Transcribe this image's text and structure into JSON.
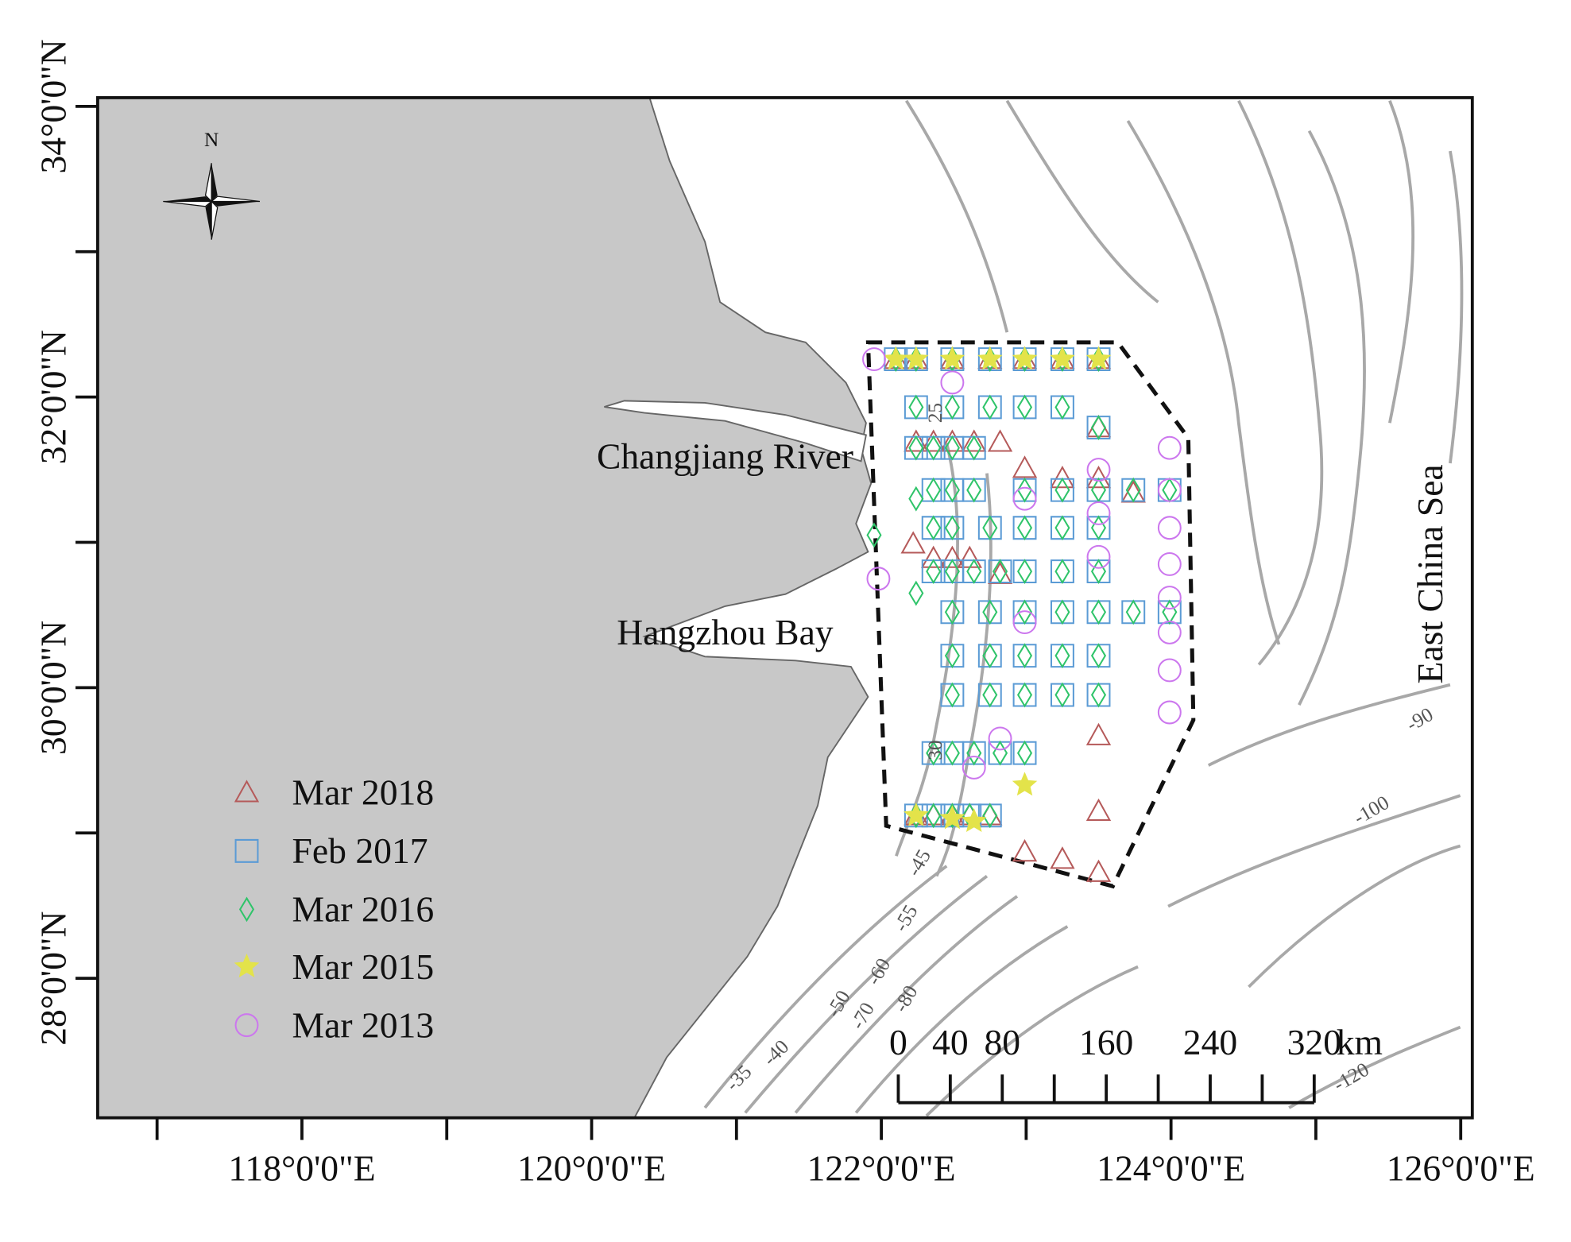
{
  "map": {
    "compass_label": "N",
    "xlim": [
      116.59,
      126.08
    ],
    "ylim": [
      27.04,
      34.06
    ],
    "xticks": [
      {
        "value": 118,
        "label": "118°0'0\"E"
      },
      {
        "value": 120,
        "label": "120°0'0\"E"
      },
      {
        "value": 122,
        "label": "122°0'0\"E"
      },
      {
        "value": 124,
        "label": "124°0'0\"E"
      },
      {
        "value": 126,
        "label": "126°0'0\"E"
      }
    ],
    "xminor": [
      117,
      119,
      121,
      123,
      125
    ],
    "yticks": [
      {
        "value": 28,
        "label": "28°0'0\"N"
      },
      {
        "value": 30,
        "label": "30°0'0\"N"
      },
      {
        "value": 32,
        "label": "32°0'0\"N"
      },
      {
        "value": 34,
        "label": "34°0'0\"N"
      }
    ],
    "yminor": [
      29,
      31,
      33
    ],
    "places": [
      "Changjiang River",
      "Hangzhou Bay",
      "East China Sea"
    ],
    "contour_labels": [
      25,
      30,
      -45,
      -55,
      -60,
      -50,
      -70,
      -80,
      -35,
      -40,
      -90,
      -100,
      -120
    ],
    "scale_bar": {
      "ticks": [
        0,
        40,
        80,
        160,
        240,
        320
      ],
      "minor_ticks": [
        120,
        200,
        280
      ],
      "unit": "km"
    },
    "surveys": [
      {
        "name": "Mar 2018",
        "symbol": "triangle",
        "color": "#b55a5a",
        "lon": [
          122.1,
          122.24,
          122.49,
          122.75,
          122.99,
          123.25,
          123.5,
          123.5,
          122.24,
          122.36,
          122.49,
          122.64,
          122.82,
          122.99,
          123.25,
          123.5,
          123.74,
          122.22,
          122.36,
          122.49,
          122.61,
          122.82,
          123.5,
          123.5,
          122.24,
          122.36,
          122.49,
          122.61,
          122.75,
          122.99,
          123.25,
          123.5
        ],
        "lat": [
          32.26,
          32.26,
          32.26,
          32.26,
          32.26,
          32.26,
          32.26,
          31.79,
          31.69,
          31.69,
          31.69,
          31.69,
          31.69,
          31.51,
          31.44,
          31.44,
          31.34,
          30.99,
          30.89,
          30.89,
          30.89,
          30.78,
          29.67,
          29.15,
          29.12,
          29.12,
          29.12,
          29.12,
          29.12,
          28.87,
          28.82,
          28.73
        ]
      },
      {
        "name": "Feb 2017",
        "symbol": "square",
        "color": "#5b9bd5",
        "lon": [
          122.1,
          122.24,
          122.49,
          122.75,
          122.99,
          123.25,
          123.5,
          122.24,
          122.49,
          122.75,
          122.99,
          123.25,
          123.5,
          122.24,
          122.36,
          122.49,
          122.64,
          122.36,
          122.49,
          122.64,
          122.99,
          123.25,
          123.5,
          123.74,
          123.99,
          122.36,
          122.49,
          122.75,
          122.99,
          123.25,
          123.5,
          122.36,
          122.49,
          122.64,
          122.82,
          122.99,
          123.25,
          123.5,
          122.49,
          122.75,
          122.99,
          123.25,
          123.5,
          123.74,
          123.99,
          122.49,
          122.75,
          122.99,
          123.25,
          123.5,
          122.49,
          122.75,
          122.99,
          123.25,
          123.5,
          122.36,
          122.49,
          122.64,
          122.82,
          122.99,
          122.24,
          122.36,
          122.49,
          122.61,
          122.75
        ],
        "lat": [
          32.26,
          32.26,
          32.26,
          32.26,
          32.26,
          32.26,
          32.26,
          31.93,
          31.93,
          31.93,
          31.93,
          31.93,
          31.79,
          31.65,
          31.65,
          31.65,
          31.65,
          31.36,
          31.36,
          31.36,
          31.36,
          31.36,
          31.36,
          31.36,
          31.36,
          31.1,
          31.1,
          31.1,
          31.1,
          31.1,
          31.1,
          30.8,
          30.8,
          30.8,
          30.8,
          30.8,
          30.8,
          30.8,
          30.52,
          30.52,
          30.52,
          30.52,
          30.52,
          30.52,
          30.52,
          30.22,
          30.22,
          30.22,
          30.22,
          30.22,
          29.95,
          29.95,
          29.95,
          29.95,
          29.95,
          29.55,
          29.55,
          29.55,
          29.55,
          29.55,
          29.12,
          29.12,
          29.12,
          29.12,
          29.12
        ]
      },
      {
        "name": "Mar 2016",
        "symbol": "diamond",
        "color": "#2fc46a",
        "lon": [
          122.1,
          122.24,
          122.49,
          122.75,
          122.99,
          123.25,
          123.5,
          122.24,
          122.49,
          122.75,
          122.99,
          123.25,
          123.5,
          122.24,
          122.36,
          122.49,
          122.64,
          122.36,
          122.49,
          122.64,
          122.99,
          123.25,
          123.5,
          123.74,
          123.99,
          122.36,
          122.49,
          122.75,
          122.99,
          123.25,
          123.5,
          122.36,
          122.49,
          122.64,
          122.82,
          122.99,
          123.25,
          123.5,
          122.49,
          122.75,
          122.99,
          123.25,
          123.5,
          123.74,
          123.99,
          122.49,
          122.75,
          122.99,
          123.25,
          123.5,
          122.49,
          122.75,
          122.99,
          123.25,
          123.5,
          122.36,
          122.49,
          122.64,
          122.82,
          122.99,
          122.24,
          122.36,
          122.49,
          122.61,
          122.75,
          121.95,
          122.24,
          122.24
        ],
        "lat": [
          32.26,
          32.26,
          32.26,
          32.26,
          32.26,
          32.26,
          32.26,
          31.93,
          31.93,
          31.93,
          31.93,
          31.93,
          31.79,
          31.65,
          31.65,
          31.65,
          31.65,
          31.36,
          31.36,
          31.36,
          31.36,
          31.36,
          31.36,
          31.36,
          31.36,
          31.1,
          31.1,
          31.1,
          31.1,
          31.1,
          31.1,
          30.8,
          30.8,
          30.8,
          30.8,
          30.8,
          30.8,
          30.8,
          30.52,
          30.52,
          30.52,
          30.52,
          30.52,
          30.52,
          30.52,
          30.22,
          30.22,
          30.22,
          30.22,
          30.22,
          29.95,
          29.95,
          29.95,
          29.95,
          29.95,
          29.55,
          29.55,
          29.55,
          29.55,
          29.55,
          29.12,
          29.12,
          29.12,
          29.12,
          29.12,
          31.05,
          30.65,
          31.3
        ]
      },
      {
        "name": "Mar 2015",
        "symbol": "star",
        "color": "#e3e34a",
        "lon": [
          122.1,
          122.24,
          122.49,
          122.75,
          122.99,
          123.25,
          123.5,
          122.99,
          122.24,
          122.49,
          122.64
        ],
        "lat": [
          32.26,
          32.26,
          32.26,
          32.26,
          32.26,
          32.26,
          32.26,
          29.33,
          29.12,
          29.1,
          29.08
        ]
      },
      {
        "name": "Mar 2013",
        "symbol": "circle",
        "color": "#cc77ee",
        "lon": [
          121.95,
          122.49,
          123.99,
          123.99,
          123.99,
          123.99,
          123.99,
          123.99,
          123.99,
          123.99,
          123.5,
          123.5,
          123.5,
          122.99,
          122.99,
          122.64,
          122.82,
          121.98
        ],
        "lat": [
          32.26,
          32.1,
          31.65,
          31.36,
          31.1,
          30.85,
          30.62,
          30.38,
          30.12,
          29.83,
          31.5,
          31.2,
          30.9,
          31.3,
          30.45,
          29.45,
          29.65,
          30.75
        ]
      }
    ]
  }
}
